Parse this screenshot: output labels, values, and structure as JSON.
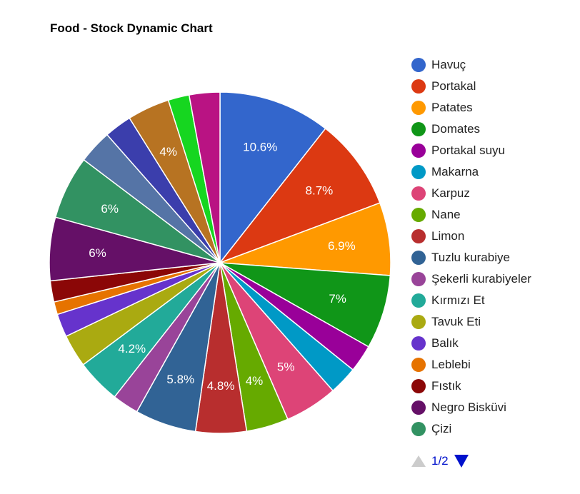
{
  "chart_data": {
    "type": "pie",
    "title": "Food - Stock Dynamic Chart",
    "legend_position": "right",
    "slices": [
      {
        "label": "Havuç",
        "value": 10.6,
        "color": "#3366cc",
        "show_label": "10.6%",
        "in_legend": true
      },
      {
        "label": "Portakal",
        "value": 8.7,
        "color": "#dc3912",
        "show_label": "8.7%",
        "in_legend": true
      },
      {
        "label": "Patates",
        "value": 6.9,
        "color": "#ff9900",
        "show_label": "6.9%",
        "in_legend": true
      },
      {
        "label": "Domates",
        "value": 7.0,
        "color": "#109618",
        "show_label": "7%",
        "in_legend": true
      },
      {
        "label": "Portakal suyu",
        "value": 2.6,
        "color": "#990099",
        "show_label": "",
        "in_legend": true
      },
      {
        "label": "Makarna",
        "value": 2.7,
        "color": "#0099c6",
        "show_label": "",
        "in_legend": true
      },
      {
        "label": "Karpuz",
        "value": 5.0,
        "color": "#dd4477",
        "show_label": "5%",
        "in_legend": true
      },
      {
        "label": "Nane",
        "value": 4.0,
        "color": "#66aa00",
        "show_label": "4%",
        "in_legend": true
      },
      {
        "label": "Limon",
        "value": 4.8,
        "color": "#b82e2e",
        "show_label": "4.8%",
        "in_legend": true
      },
      {
        "label": "Tuzlu kurabiye",
        "value": 5.8,
        "color": "#316395",
        "show_label": "5.8%",
        "in_legend": true
      },
      {
        "label": "Şekerli kurabiyeler",
        "value": 2.5,
        "color": "#994499",
        "show_label": "",
        "in_legend": true
      },
      {
        "label": "Kırmızı Et",
        "value": 4.2,
        "color": "#22aa99",
        "show_label": "4.2%",
        "in_legend": true
      },
      {
        "label": "Tavuk Eti",
        "value": 3.1,
        "color": "#aaaa11",
        "show_label": "",
        "in_legend": true
      },
      {
        "label": "Balık",
        "value": 2.2,
        "color": "#6633cc",
        "show_label": "",
        "in_legend": true
      },
      {
        "label": "Leblebi",
        "value": 1.2,
        "color": "#e67300",
        "show_label": "",
        "in_legend": true
      },
      {
        "label": "Fıstık",
        "value": 2.0,
        "color": "#8b0707",
        "show_label": "",
        "in_legend": true
      },
      {
        "label": "Negro Bisküvi",
        "value": 6.0,
        "color": "#651067",
        "show_label": "6%",
        "in_legend": true
      },
      {
        "label": "Çizi",
        "value": 6.0,
        "color": "#329262",
        "show_label": "6%",
        "in_legend": true
      },
      {
        "label": "",
        "value": 3.2,
        "color": "#5574a6",
        "show_label": "",
        "in_legend": false
      },
      {
        "label": "",
        "value": 2.6,
        "color": "#3b3eac",
        "show_label": "",
        "in_legend": false
      },
      {
        "label": "",
        "value": 4.0,
        "color": "#b77322",
        "show_label": "4%",
        "in_legend": false
      },
      {
        "label": "",
        "value": 2.0,
        "color": "#16d620",
        "show_label": "",
        "in_legend": false
      },
      {
        "label": "",
        "value": 2.9,
        "color": "#b91383",
        "show_label": "",
        "in_legend": false
      }
    ]
  },
  "pager": {
    "text": "1/2"
  }
}
